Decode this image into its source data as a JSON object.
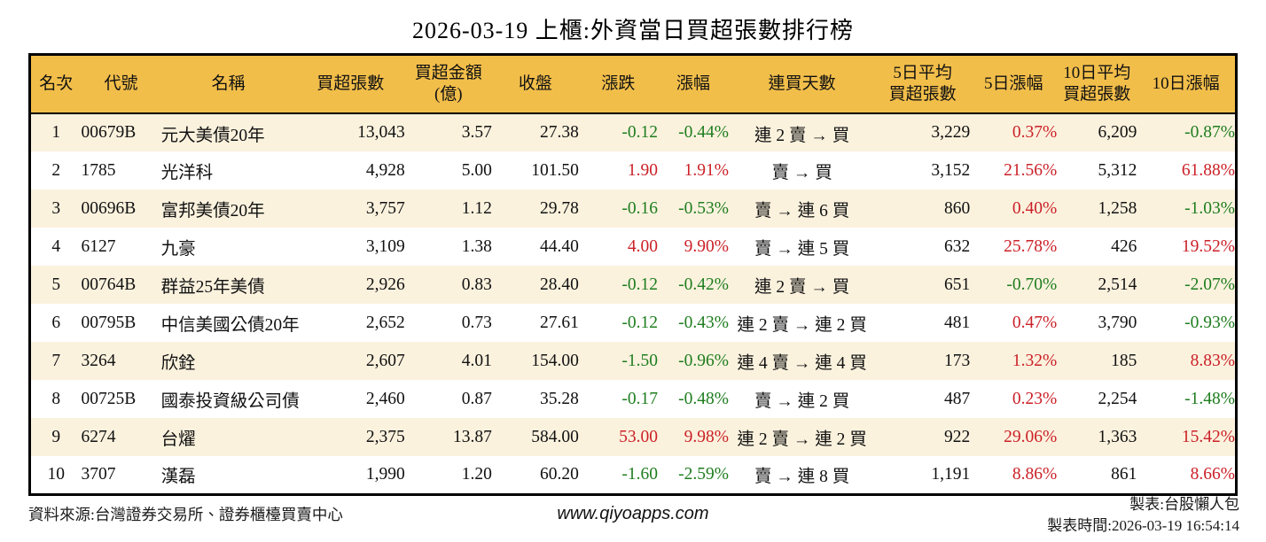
{
  "title": "2026-03-19 上櫃:外資當日買超張數排行榜",
  "colors": {
    "up": "#cb2128",
    "down": "#1e7d1e",
    "header_bg": "#f2be4a",
    "row_alt_bg": "#fbf2de"
  },
  "table": {
    "columns": [
      {
        "key": "rank",
        "label": "名次",
        "align": "c"
      },
      {
        "key": "code",
        "label": "代號",
        "align": "l"
      },
      {
        "key": "name",
        "label": "名稱",
        "align": "l"
      },
      {
        "key": "net_buy",
        "label": "買超張數",
        "align": "r"
      },
      {
        "key": "amount",
        "label": "買超金額\n(億)",
        "align": "r"
      },
      {
        "key": "close",
        "label": "收盤",
        "align": "r"
      },
      {
        "key": "change",
        "label": "漲跌",
        "align": "r"
      },
      {
        "key": "change_pct",
        "label": "漲幅",
        "align": "r"
      },
      {
        "key": "streak",
        "label": "連買天數",
        "align": "c"
      },
      {
        "key": "avg5",
        "label": "5日平均\n買超張數",
        "align": "r"
      },
      {
        "key": "pct5",
        "label": "5日漲幅",
        "align": "r"
      },
      {
        "key": "avg10",
        "label": "10日平均\n買超張數",
        "align": "r"
      },
      {
        "key": "pct10",
        "label": "10日漲幅",
        "align": "r"
      }
    ],
    "signed_columns": [
      "change",
      "change_pct",
      "pct5",
      "pct10"
    ],
    "rows": [
      {
        "rank": "1",
        "code": "00679B",
        "name": "元大美債20年",
        "net_buy": "13,043",
        "amount": "3.57",
        "close": "27.38",
        "change": "-0.12",
        "change_pct": "-0.44%",
        "streak": "連 2 賣 → 買",
        "avg5": "3,229",
        "pct5": "0.37%",
        "avg10": "6,209",
        "pct10": "-0.87%"
      },
      {
        "rank": "2",
        "code": "1785",
        "name": "光洋科",
        "net_buy": "4,928",
        "amount": "5.00",
        "close": "101.50",
        "change": "1.90",
        "change_pct": "1.91%",
        "streak": "賣 → 買",
        "avg5": "3,152",
        "pct5": "21.56%",
        "avg10": "5,312",
        "pct10": "61.88%"
      },
      {
        "rank": "3",
        "code": "00696B",
        "name": "富邦美債20年",
        "net_buy": "3,757",
        "amount": "1.12",
        "close": "29.78",
        "change": "-0.16",
        "change_pct": "-0.53%",
        "streak": "賣 → 連 6 買",
        "avg5": "860",
        "pct5": "0.40%",
        "avg10": "1,258",
        "pct10": "-1.03%"
      },
      {
        "rank": "4",
        "code": "6127",
        "name": "九豪",
        "net_buy": "3,109",
        "amount": "1.38",
        "close": "44.40",
        "change": "4.00",
        "change_pct": "9.90%",
        "streak": "賣 → 連 5 買",
        "avg5": "632",
        "pct5": "25.78%",
        "avg10": "426",
        "pct10": "19.52%"
      },
      {
        "rank": "5",
        "code": "00764B",
        "name": "群益25年美債",
        "net_buy": "2,926",
        "amount": "0.83",
        "close": "28.40",
        "change": "-0.12",
        "change_pct": "-0.42%",
        "streak": "連 2 賣 → 買",
        "avg5": "651",
        "pct5": "-0.70%",
        "avg10": "2,514",
        "pct10": "-2.07%"
      },
      {
        "rank": "6",
        "code": "00795B",
        "name": "中信美國公債20年",
        "net_buy": "2,652",
        "amount": "0.73",
        "close": "27.61",
        "change": "-0.12",
        "change_pct": "-0.43%",
        "streak": "連 2 賣 → 連 2 買",
        "avg5": "481",
        "pct5": "0.47%",
        "avg10": "3,790",
        "pct10": "-0.93%"
      },
      {
        "rank": "7",
        "code": "3264",
        "name": "欣銓",
        "net_buy": "2,607",
        "amount": "4.01",
        "close": "154.00",
        "change": "-1.50",
        "change_pct": "-0.96%",
        "streak": "連 4 賣 → 連 4 買",
        "avg5": "173",
        "pct5": "1.32%",
        "avg10": "185",
        "pct10": "8.83%"
      },
      {
        "rank": "8",
        "code": "00725B",
        "name": "國泰投資級公司債",
        "net_buy": "2,460",
        "amount": "0.87",
        "close": "35.28",
        "change": "-0.17",
        "change_pct": "-0.48%",
        "streak": "賣 → 連 2 買",
        "avg5": "487",
        "pct5": "0.23%",
        "avg10": "2,254",
        "pct10": "-1.48%"
      },
      {
        "rank": "9",
        "code": "6274",
        "name": "台燿",
        "net_buy": "2,375",
        "amount": "13.87",
        "close": "584.00",
        "change": "53.00",
        "change_pct": "9.98%",
        "streak": "連 2 賣 → 連 2 買",
        "avg5": "922",
        "pct5": "29.06%",
        "avg10": "1,363",
        "pct10": "15.42%"
      },
      {
        "rank": "10",
        "code": "3707",
        "name": "漢磊",
        "net_buy": "1,990",
        "amount": "1.20",
        "close": "60.20",
        "change": "-1.60",
        "change_pct": "-2.59%",
        "streak": "賣 → 連 8 買",
        "avg5": "1,191",
        "pct5": "8.86%",
        "avg10": "861",
        "pct10": "8.66%"
      }
    ]
  },
  "footer": {
    "source": "資料來源:台灣證券交易所、證券櫃檯買賣中心",
    "website": "www.qiyoapps.com",
    "credit": "製表:台股懶人包",
    "generated_at": "製表時間:2026-03-19 16:54:14"
  }
}
